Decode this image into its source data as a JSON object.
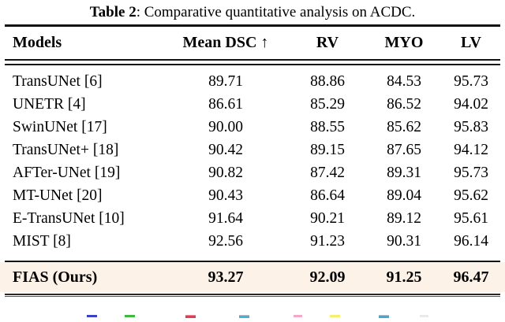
{
  "title": {
    "label": "Table 2",
    "caption": ": Comparative quantitative analysis on ACDC."
  },
  "table": {
    "highlight_bg": "#fdf2e8",
    "headers": {
      "models": "Models",
      "mean_dsc": "Mean DSC ↑",
      "rv": "RV",
      "myo": "MYO",
      "lv": "LV"
    },
    "rows": [
      {
        "model": "TransUNet [6]",
        "mean_dsc": "89.71",
        "rv": "88.86",
        "myo": "84.53",
        "lv": "95.73"
      },
      {
        "model": "UNETR [4]",
        "mean_dsc": "86.61",
        "rv": "85.29",
        "myo": "86.52",
        "lv": "94.02"
      },
      {
        "model": "SwinUNet [17]",
        "mean_dsc": "90.00",
        "rv": "88.55",
        "myo": "85.62",
        "lv": "95.83"
      },
      {
        "model": "TransUNet+ [18]",
        "mean_dsc": "90.42",
        "rv": "89.15",
        "myo": "87.65",
        "lv": "94.12"
      },
      {
        "model": "AFTer-UNet [19]",
        "mean_dsc": "90.82",
        "rv": "87.42",
        "myo": "89.31",
        "lv": "95.73"
      },
      {
        "model": "MT-UNet [20]",
        "mean_dsc": "90.43",
        "rv": "86.64",
        "myo": "89.04",
        "lv": "95.62"
      },
      {
        "model": "E-TransUNet [10]",
        "mean_dsc": "91.64",
        "rv": "90.21",
        "myo": "89.12",
        "lv": "95.61"
      },
      {
        "model": "MIST [8]",
        "mean_dsc": "92.56",
        "rv": "91.23",
        "myo": "90.31",
        "lv": "96.14"
      }
    ],
    "highlight_row": {
      "model": "FIAS (Ours)",
      "mean_dsc": "93.27",
      "rv": "92.09",
      "myo": "91.25",
      "lv": "96.47"
    }
  },
  "chart_data": {
    "type": "table",
    "title": "Table 2: Comparative quantitative analysis on ACDC.",
    "columns": [
      "Models",
      "Mean DSC ↑",
      "RV",
      "MYO",
      "LV"
    ],
    "series": [
      {
        "name": "TransUNet [6]",
        "values": [
          89.71,
          88.86,
          84.53,
          95.73
        ]
      },
      {
        "name": "UNETR [4]",
        "values": [
          86.61,
          85.29,
          86.52,
          94.02
        ]
      },
      {
        "name": "SwinUNet [17]",
        "values": [
          90.0,
          88.55,
          85.62,
          95.83
        ]
      },
      {
        "name": "TransUNet+ [18]",
        "values": [
          90.42,
          89.15,
          87.65,
          94.12
        ]
      },
      {
        "name": "AFTer-UNet [19]",
        "values": [
          90.82,
          87.42,
          89.31,
          95.73
        ]
      },
      {
        "name": "MT-UNet [20]",
        "values": [
          90.43,
          86.64,
          89.04,
          95.62
        ]
      },
      {
        "name": "E-TransUNet [10]",
        "values": [
          91.64,
          90.21,
          89.12,
          95.61
        ]
      },
      {
        "name": "MIST [8]",
        "values": [
          92.56,
          91.23,
          90.31,
          96.14
        ]
      },
      {
        "name": "FIAS (Ours)",
        "values": [
          93.27,
          92.09,
          91.25,
          96.47
        ]
      }
    ]
  },
  "legend_swatches": [
    {
      "name": "swatch-blue",
      "color": "#3a41c6",
      "top_color": null
    },
    {
      "name": "swatch-green",
      "color": "#3eb93e",
      "top_color": null
    },
    {
      "name": "swatch-red",
      "color": "#e63c4e",
      "top_color": "#f0899b"
    },
    {
      "name": "swatch-cyan",
      "color": "#41b1e0",
      "top_color": "#b9bec2"
    },
    {
      "name": "swatch-pink",
      "color": "#f3a8c8",
      "top_color": null
    },
    {
      "name": "swatch-yellow",
      "color": "#f5ef70",
      "top_color": null
    },
    {
      "name": "swatch-cyan-2",
      "color": "#38abdf",
      "top_color": "#b9bec2"
    },
    {
      "name": "swatch-light-gray",
      "color": "#e9e9e9",
      "top_color": null
    }
  ]
}
